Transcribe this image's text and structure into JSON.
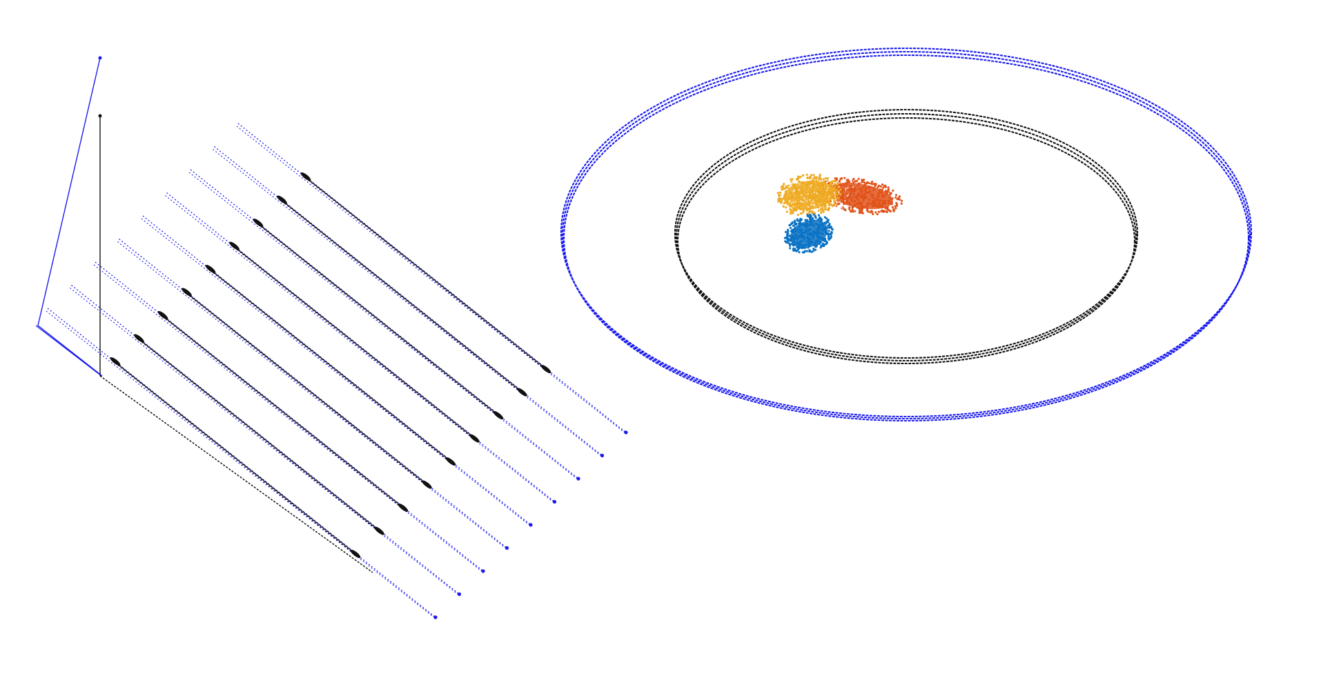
{
  "figure": {
    "title": "",
    "colors": {
      "scan_path": "#1a1aee",
      "target_path": "#111111",
      "cluster_blue": "#0a72c4",
      "cluster_orange": "#e0521a",
      "cluster_yellow": "#eeaa22",
      "background": "#ffffff"
    },
    "panels": [
      {
        "id": "raster-scan",
        "description_icon": "raster-scan-icon",
        "passes": 9
      },
      {
        "id": "orbit-scan",
        "description_icon": "orbit-icon",
        "rings": 2,
        "clusters": 3
      }
    ]
  }
}
